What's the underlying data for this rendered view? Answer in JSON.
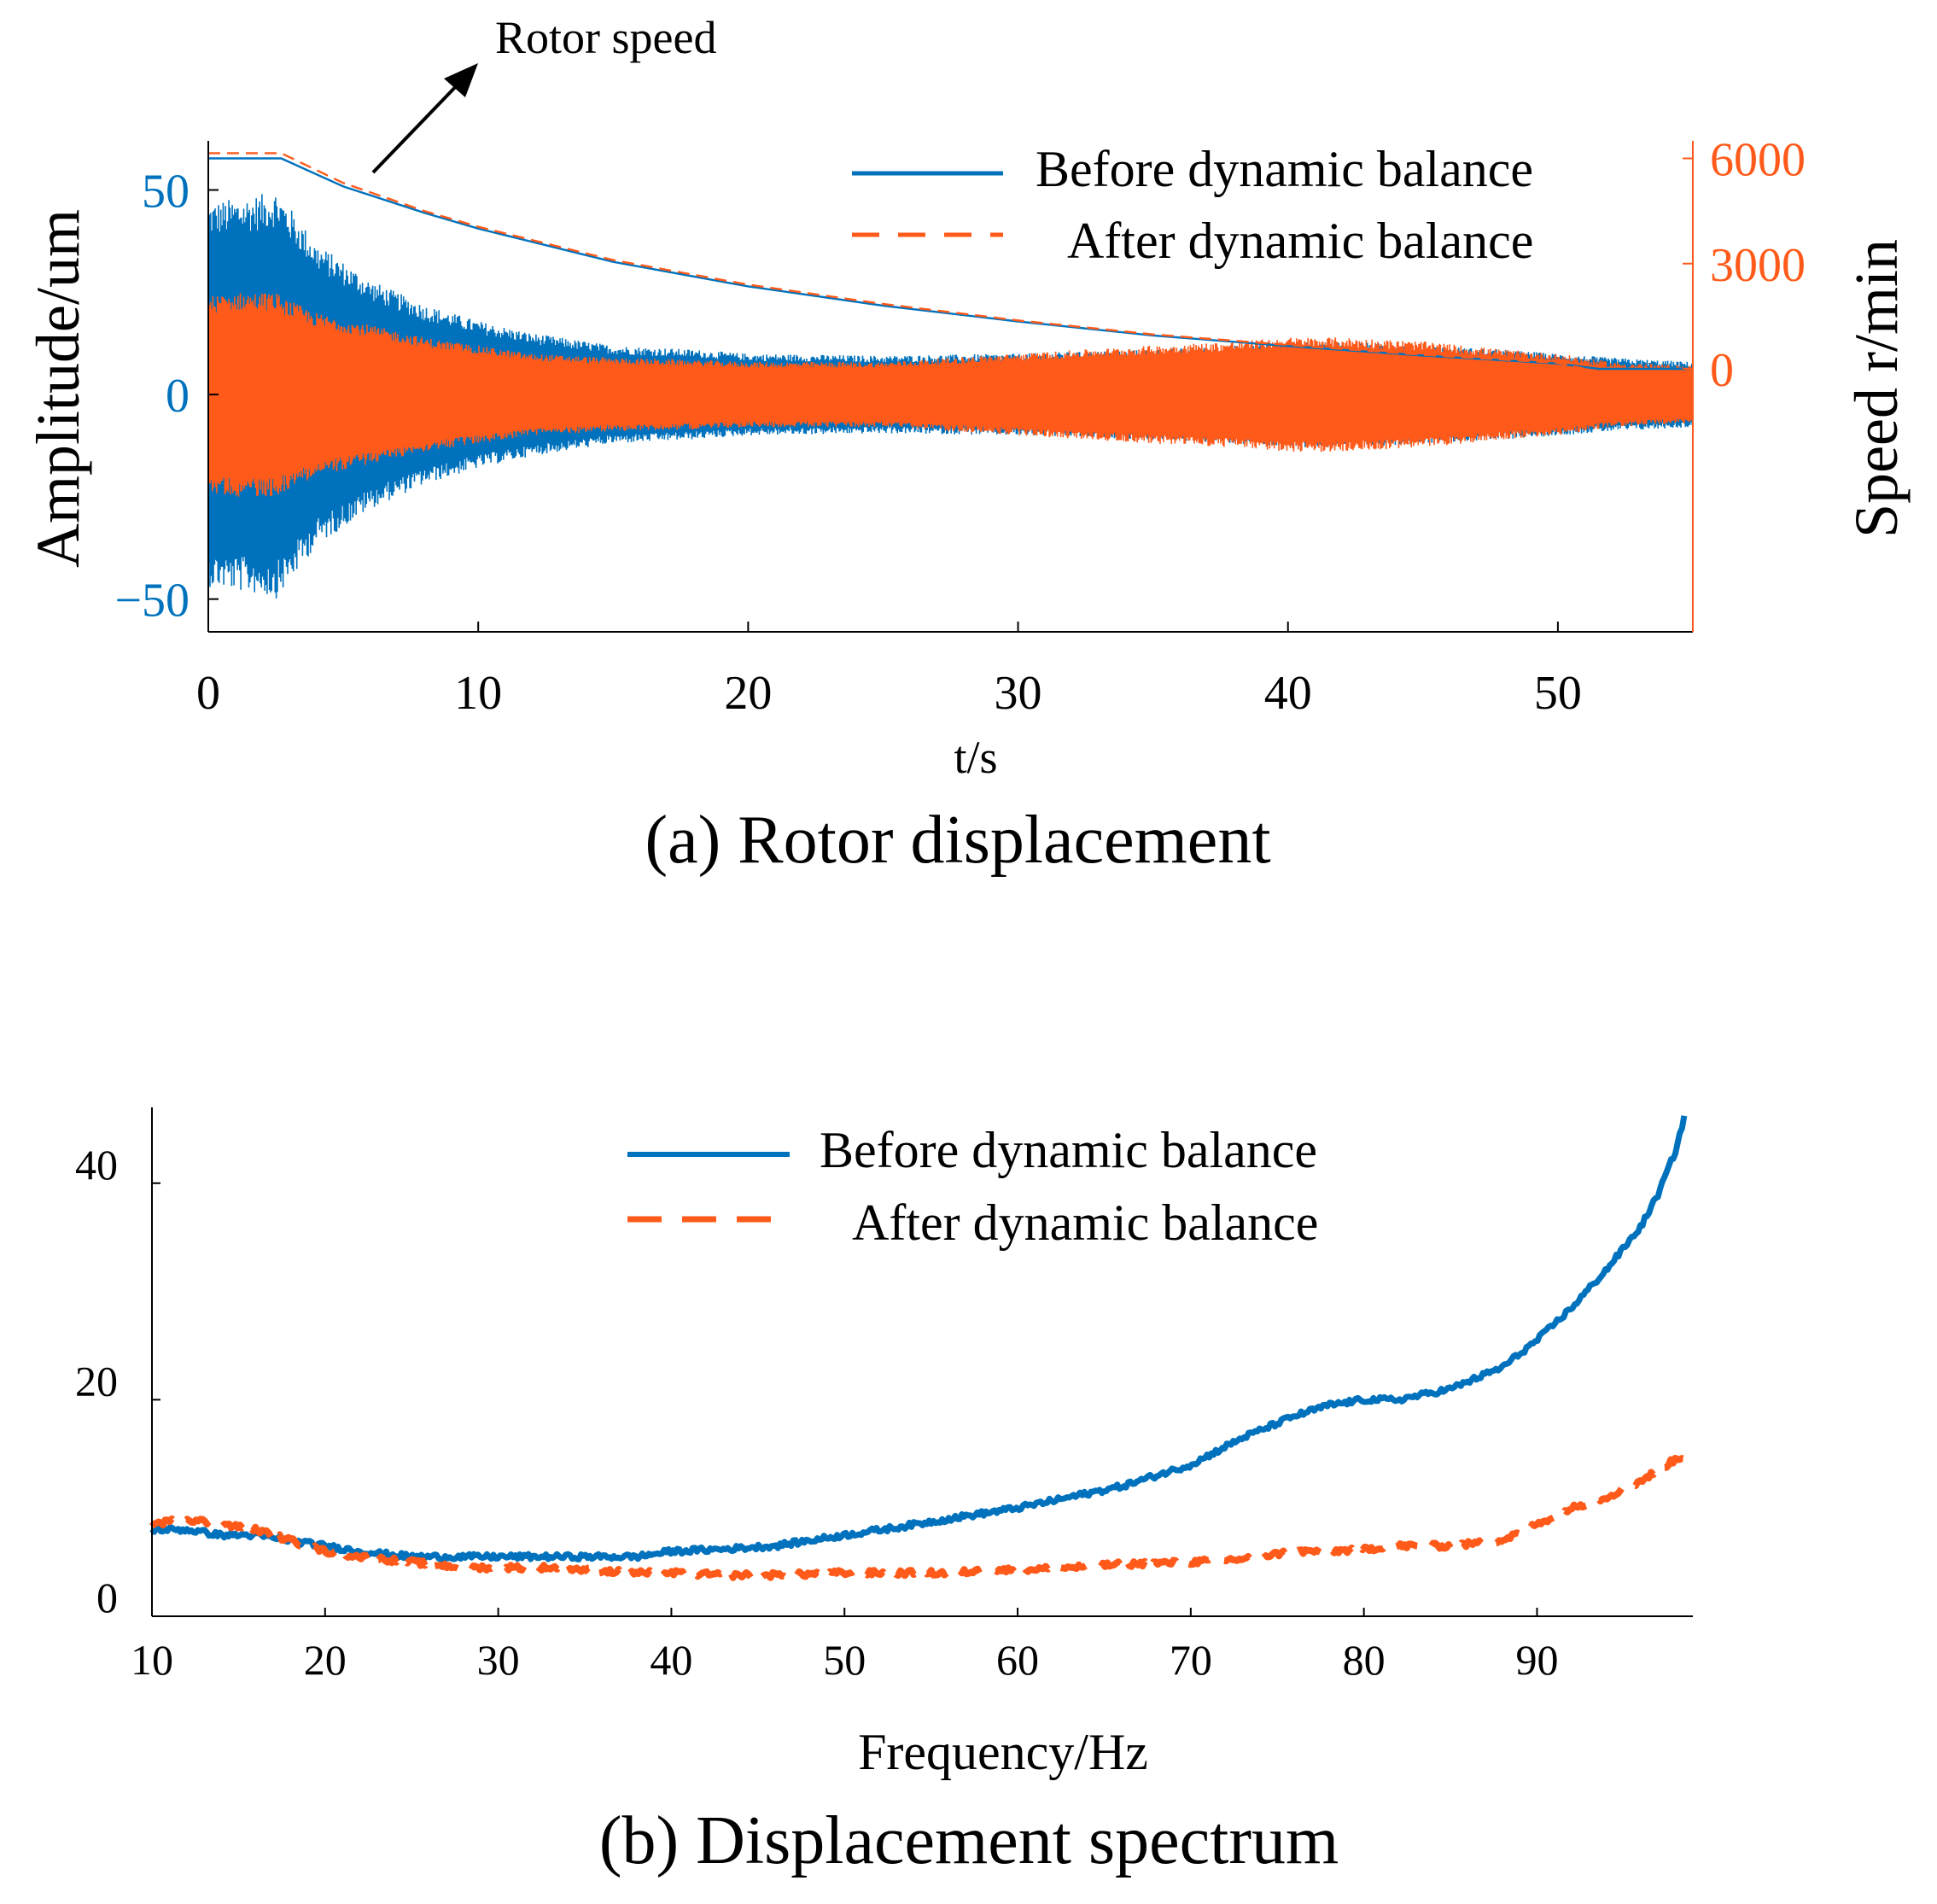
{
  "colors": {
    "before": "#0072BD",
    "after": "#FF5A1A",
    "axis": "#000000",
    "speed_axis": "#FF5A1A"
  },
  "chart_data": [
    {
      "type": "line",
      "caption": "(a) Rotor displacement",
      "xlabel": "t/s",
      "ylabel_left": "Amplitude/um",
      "ylabel_right": "Speed r/min",
      "xlim": [
        0,
        55
      ],
      "ylim_left": [
        -58,
        62
      ],
      "ylim_right": [
        -7500,
        6500
      ],
      "xticks": [
        0,
        10,
        20,
        30,
        40,
        50
      ],
      "yticks_left": [
        -50,
        0,
        50
      ],
      "yticks_right": [
        0,
        3000,
        6000
      ],
      "annotation": "Rotor speed",
      "legend": [
        "Before dynamic balance",
        "After dynamic balance"
      ],
      "legend_position": "top-right",
      "grid": false,
      "series": [
        {
          "name": "Before dynamic balance",
          "kind": "vibration-envelope",
          "axis": "left",
          "t": [
            0,
            1,
            2,
            2.5,
            3,
            4,
            6,
            8,
            10,
            12,
            15,
            18,
            20,
            25,
            30,
            35,
            38,
            40,
            42,
            45,
            48,
            50,
            52,
            55
          ],
          "amplitude": [
            47,
            48,
            49,
            50,
            46,
            37,
            28,
            22,
            18,
            15,
            12,
            11,
            10,
            9.5,
            10,
            11,
            12,
            13,
            13,
            12,
            11,
            10,
            9,
            8
          ]
        },
        {
          "name": "After dynamic balance",
          "kind": "vibration-envelope",
          "axis": "left",
          "t": [
            0,
            1,
            2,
            2.5,
            3,
            4,
            6,
            8,
            10,
            12,
            15,
            18,
            20,
            25,
            30,
            35,
            38,
            40,
            42,
            45,
            48,
            50,
            52,
            55
          ],
          "amplitude": [
            24,
            25,
            25,
            25,
            23,
            20,
            17,
            14,
            12,
            10,
            9,
            8.5,
            8,
            8,
            10,
            12,
            13,
            14,
            14,
            13,
            11,
            10,
            8,
            7
          ]
        },
        {
          "name": "Before dynamic balance",
          "kind": "speed",
          "axis": "right",
          "t": [
            0,
            2.7,
            5,
            8,
            10,
            15,
            20,
            25,
            30,
            35,
            40,
            45,
            50,
            51.5,
            55
          ],
          "speed": [
            6000,
            6000,
            5200,
            4450,
            4000,
            3050,
            2350,
            1800,
            1350,
            950,
            650,
            380,
            150,
            0,
            0
          ]
        },
        {
          "name": "After dynamic balance",
          "kind": "speed",
          "axis": "right",
          "t": [
            0,
            2.7,
            5,
            8,
            10,
            15,
            20,
            25,
            30,
            35,
            40,
            45,
            50,
            51
          ],
          "speed": [
            6150,
            6150,
            5300,
            4500,
            4050,
            3100,
            2400,
            1850,
            1380,
            980,
            680,
            400,
            170,
            0
          ]
        }
      ]
    },
    {
      "type": "line",
      "caption": "(b) Displacement spectrum",
      "xlabel": "Frequency/Hz",
      "ylabel": "",
      "xlim": [
        10,
        99
      ],
      "ylim": [
        0,
        47
      ],
      "xticks": [
        10,
        20,
        30,
        40,
        50,
        60,
        70,
        80,
        90
      ],
      "yticks": [
        0,
        20,
        40
      ],
      "legend": [
        "Before dynamic balance",
        "After dynamic balance"
      ],
      "legend_position": "top-center",
      "grid": false,
      "series": [
        {
          "name": "Before dynamic balance",
          "x": [
            10,
            12,
            14,
            16,
            18,
            20,
            22,
            25,
            28,
            30,
            33,
            36,
            38,
            40,
            43,
            46,
            50,
            53,
            56,
            58,
            60,
            63,
            66,
            70,
            73,
            76,
            78,
            80,
            82,
            85,
            88,
            90,
            92,
            94,
            96,
            97,
            98,
            98.5
          ],
          "y": [
            8,
            8,
            7.5,
            7.5,
            7,
            6.5,
            6,
            5.5,
            5.5,
            5.5,
            5.5,
            5.5,
            5.5,
            6,
            6.2,
            6.5,
            7.5,
            8.2,
            9,
            9.5,
            10,
            11,
            12,
            14,
            16.5,
            18.5,
            19.5,
            20,
            20,
            21,
            23,
            25.5,
            28.5,
            32,
            36,
            39,
            43,
            46
          ]
        },
        {
          "name": "After dynamic balance",
          "x": [
            10,
            12,
            14,
            16,
            18,
            20,
            22,
            25,
            28,
            30,
            33,
            36,
            38,
            40,
            43,
            46,
            50,
            53,
            56,
            58,
            60,
            63,
            66,
            70,
            73,
            76,
            78,
            80,
            82,
            85,
            88,
            90,
            92,
            94,
            96,
            97,
            98,
            99
          ],
          "y": [
            8.5,
            9,
            8.5,
            8,
            7,
            6,
            5.5,
            5,
            4.5,
            4.5,
            4.5,
            4.2,
            4,
            4,
            3.8,
            3.8,
            4,
            4,
            4,
            4.2,
            4.3,
            4.5,
            4.8,
            5,
            5.3,
            6,
            6,
            6.2,
            6.5,
            6.5,
            7,
            8.5,
            10,
            11,
            12.5,
            13.5,
            14.5,
            15
          ]
        }
      ]
    }
  ]
}
